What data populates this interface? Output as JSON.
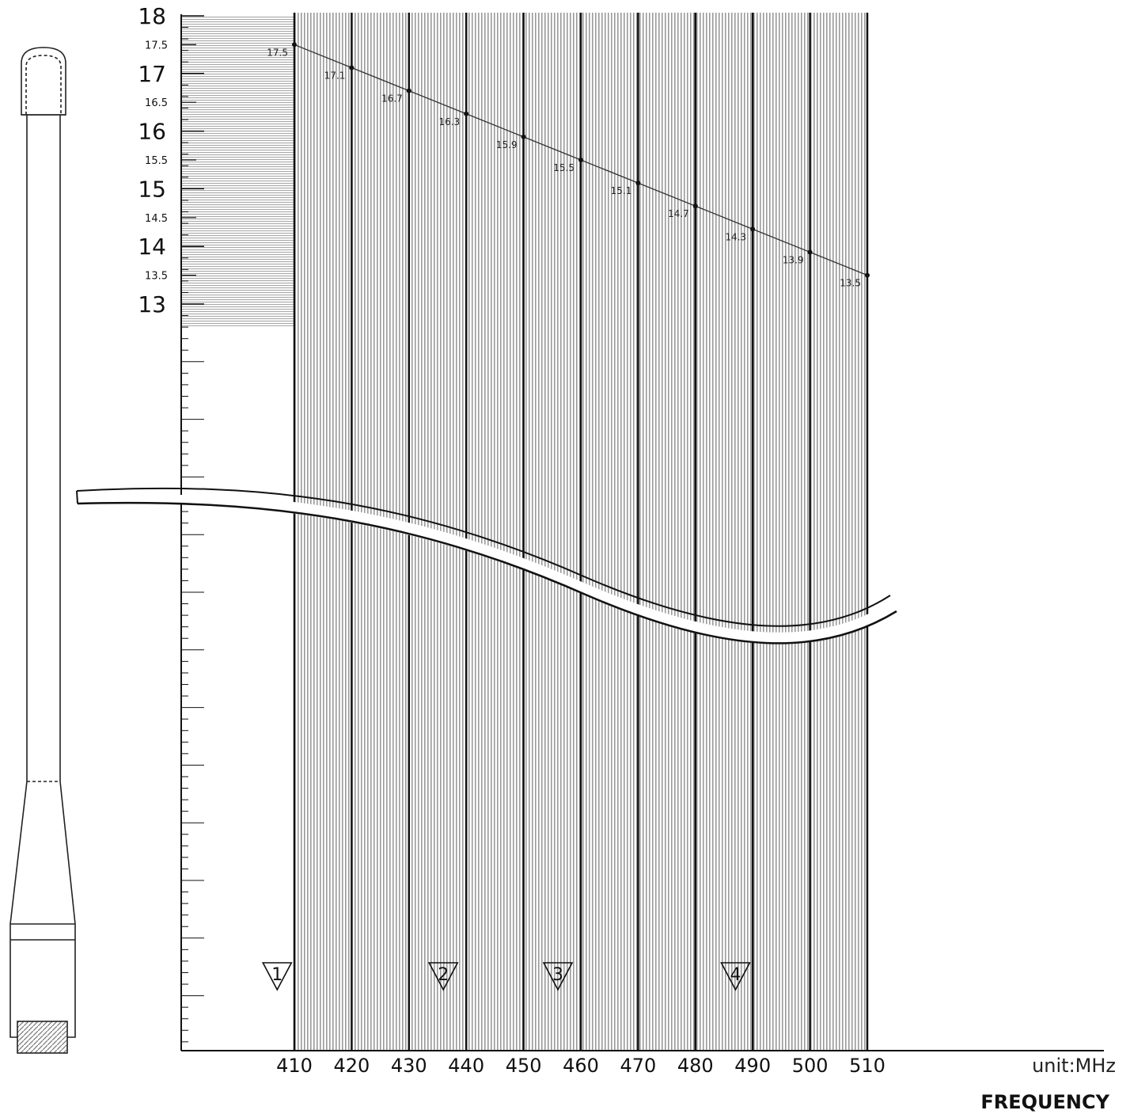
{
  "chart_data": {
    "type": "line",
    "x_unit": "unit:MHz",
    "xlabel": "FREQUENCY",
    "ylabel": "",
    "title": "",
    "x_ticks": [
      410,
      420,
      430,
      440,
      450,
      460,
      470,
      480,
      490,
      500,
      510
    ],
    "y_major_ticks": [
      "18",
      "17",
      "16",
      "15",
      "14",
      "13"
    ],
    "y_minor_ticks": [
      "17.5",
      "16.5",
      "15.5",
      "14.5",
      "13.5"
    ],
    "ylim": [
      13,
      18
    ],
    "xlim": [
      410,
      510
    ],
    "series": [
      {
        "x": [
          410,
          420,
          430,
          440,
          450,
          460,
          470,
          480,
          490,
          500,
          510
        ],
        "values": [
          17.5,
          17.1,
          16.7,
          16.3,
          15.9,
          15.5,
          15.1,
          14.7,
          14.3,
          13.9,
          13.5
        ],
        "labels": [
          "17.5",
          "17.1",
          "16.7",
          "16.3",
          "15.9",
          "15.5",
          "15.1",
          "14.7",
          "14.3",
          "13.9",
          "13.5"
        ]
      }
    ],
    "cut_markers": [
      {
        "label": "1",
        "x": 407
      },
      {
        "label": "2",
        "x": 436
      },
      {
        "label": "3",
        "x": 456
      },
      {
        "label": "4",
        "x": 487
      }
    ],
    "axis_break": true,
    "grid": true,
    "colors": {
      "line": "#333333",
      "gridline": "#111111",
      "hatch": "#9a9a9a",
      "axis": "#111111"
    }
  }
}
